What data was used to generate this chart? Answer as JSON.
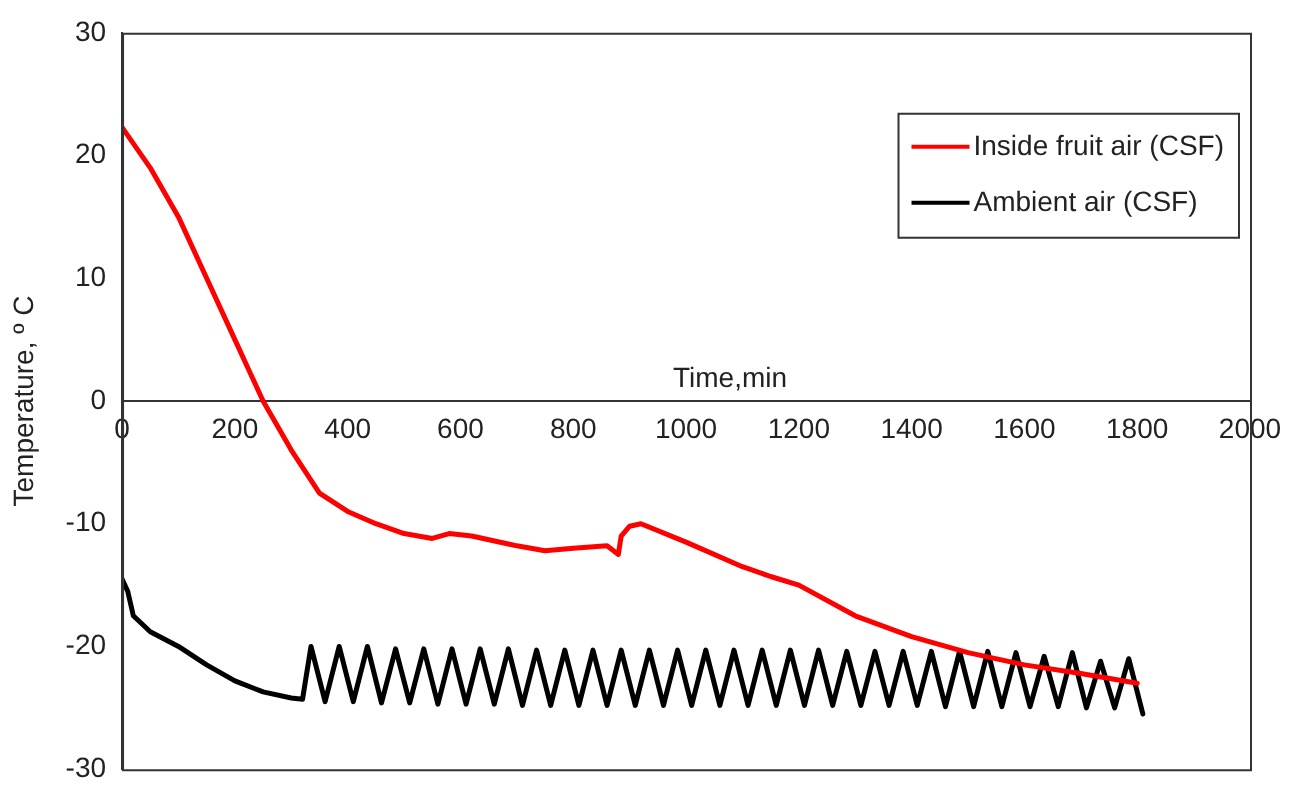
{
  "chart_data": {
    "type": "line",
    "xlabel": "Time,min",
    "ylabel": "Temperature, º C",
    "xlim": [
      0,
      2000
    ],
    "xticks": [
      0,
      200,
      400,
      600,
      800,
      1000,
      1200,
      1400,
      1600,
      1800,
      2000
    ],
    "ylim": [
      -30,
      30
    ],
    "yticks": [
      -30,
      -20,
      -10,
      0,
      10,
      20,
      30
    ],
    "grid": false,
    "legend": "top right",
    "marker": "none",
    "line_style": "solid",
    "series": [
      {
        "name": "Inside fruit air (CSF)",
        "color": "#ff0000",
        "x": [
          0,
          50,
          100,
          150,
          200,
          250,
          300,
          350,
          400,
          450,
          500,
          550,
          580,
          620,
          700,
          750,
          800,
          860,
          880,
          885,
          900,
          920,
          1000,
          1100,
          1150,
          1200,
          1300,
          1400,
          1500,
          1600,
          1700,
          1800
        ],
        "values": [
          22.3,
          19,
          15,
          10,
          5,
          0,
          -4,
          -7.5,
          -9,
          -10,
          -10.8,
          -11.2,
          -10.8,
          -11,
          -11.8,
          -12.2,
          -12,
          -11.8,
          -12.5,
          -11,
          -10.2,
          -10,
          -11.5,
          -13.5,
          -14.3,
          -15,
          -17.5,
          -19.2,
          -20.5,
          -21.5,
          -22.2,
          -23
        ]
      },
      {
        "name": "Ambient air (CSF)",
        "color": "#000000",
        "x": [
          0,
          10,
          20,
          50,
          100,
          150,
          200,
          250,
          300,
          320,
          335,
          360,
          385,
          410,
          435,
          460,
          485,
          510,
          535,
          560,
          585,
          610,
          635,
          660,
          685,
          710,
          735,
          760,
          785,
          810,
          835,
          860,
          885,
          910,
          935,
          960,
          985,
          1010,
          1035,
          1060,
          1085,
          1110,
          1135,
          1160,
          1185,
          1210,
          1235,
          1260,
          1285,
          1310,
          1335,
          1360,
          1385,
          1410,
          1435,
          1460,
          1485,
          1510,
          1535,
          1560,
          1585,
          1610,
          1635,
          1660,
          1685,
          1710,
          1735,
          1760,
          1785,
          1810
        ],
        "values": [
          -14.5,
          -15.5,
          -17.5,
          -18.8,
          -20,
          -21.5,
          -22.8,
          -23.7,
          -24.2,
          -24.3,
          -20,
          -24.5,
          -20,
          -24.5,
          -20,
          -24.6,
          -20.2,
          -24.6,
          -20.2,
          -24.7,
          -20.2,
          -24.7,
          -20.2,
          -24.7,
          -20.2,
          -24.8,
          -20.3,
          -24.8,
          -20.3,
          -24.8,
          -20.3,
          -24.8,
          -20.3,
          -24.8,
          -20.3,
          -24.8,
          -20.3,
          -24.8,
          -20.3,
          -24.8,
          -20.3,
          -24.8,
          -20.3,
          -24.8,
          -20.3,
          -24.8,
          -20.3,
          -24.8,
          -20.4,
          -24.8,
          -20.4,
          -24.8,
          -20.4,
          -24.8,
          -20.4,
          -24.9,
          -20.4,
          -24.9,
          -20.4,
          -24.9,
          -20.5,
          -24.9,
          -20.8,
          -24.9,
          -20.5,
          -25,
          -21.2,
          -25,
          -21,
          -25.5
        ]
      }
    ]
  }
}
